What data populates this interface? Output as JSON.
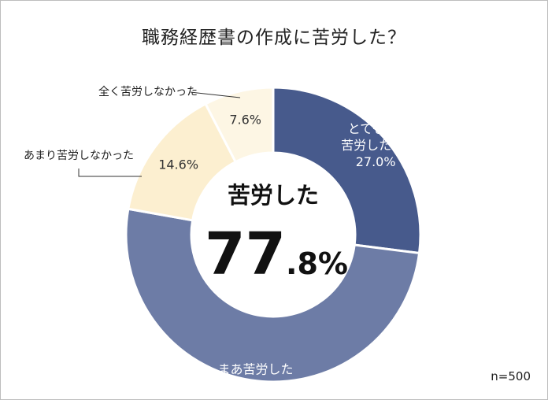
{
  "chart_data": {
    "type": "pie",
    "title": "職務経歴書の作成に苦労した？",
    "variant": "donut",
    "slices": [
      {
        "label": "とても苦労した",
        "label_lines": [
          "とても",
          "苦労した"
        ],
        "value": 27.0,
        "value_text": "27.0%",
        "color": "#475a8c",
        "text_color": "#ffffff"
      },
      {
        "label": "まあ苦労した",
        "label_lines": [
          "まあ苦労した"
        ],
        "value": 50.8,
        "value_text": "50.8%",
        "color": "#6d7ca6",
        "text_color": "#ffffff"
      },
      {
        "label": "あまり苦労しなかった",
        "label_lines": [],
        "value": 14.6,
        "value_text": "14.6%",
        "color": "#fcefd0",
        "text_color": "#333333"
      },
      {
        "label": "全く苦労しなかった",
        "label_lines": [],
        "value": 7.6,
        "value_text": "7.6%",
        "color": "#fdf6e4",
        "text_color": "#333333"
      }
    ],
    "outside_labels": [
      "全く苦労しなかった",
      "あまり苦労しなかった"
    ],
    "center_label": "苦労した",
    "center_value_big": "77",
    "center_value_small": ".8%",
    "sample_size": "n=500"
  }
}
